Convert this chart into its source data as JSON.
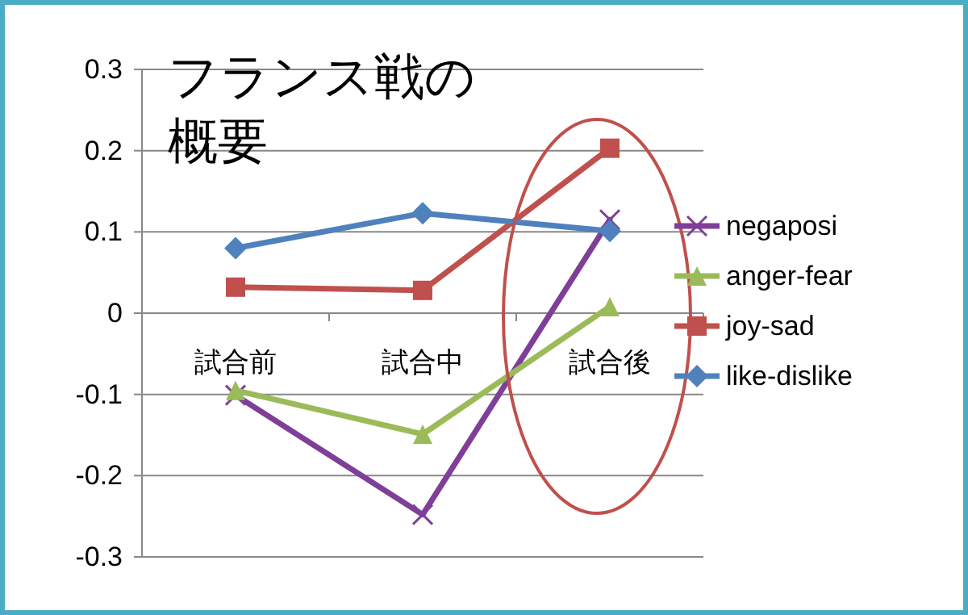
{
  "chart_data": {
    "type": "line",
    "title": "フランス戦の概要",
    "categories": [
      "試合前",
      "試合中",
      "試合後"
    ],
    "series": [
      {
        "name": "negaposi",
        "color": "#7f3f98",
        "marker": "cross",
        "values": [
          -0.101,
          -0.248,
          0.115
        ]
      },
      {
        "name": "anger-fear",
        "color": "#9bbb59",
        "marker": "triangle",
        "values": [
          -0.095,
          -0.149,
          0.008
        ]
      },
      {
        "name": "joy-sad",
        "color": "#c0504d",
        "marker": "square",
        "values": [
          0.032,
          0.028,
          0.203
        ]
      },
      {
        "name": "like-dislike",
        "color": "#4f81bd",
        "marker": "diamond",
        "values": [
          0.08,
          0.123,
          0.101
        ]
      }
    ],
    "ylim": [
      -0.3,
      0.3
    ],
    "yticks": [
      -0.3,
      -0.2,
      -0.1,
      0,
      0.1,
      0.2,
      0.3
    ],
    "grid": "y",
    "legend": "right",
    "line_style": "solid"
  }
}
